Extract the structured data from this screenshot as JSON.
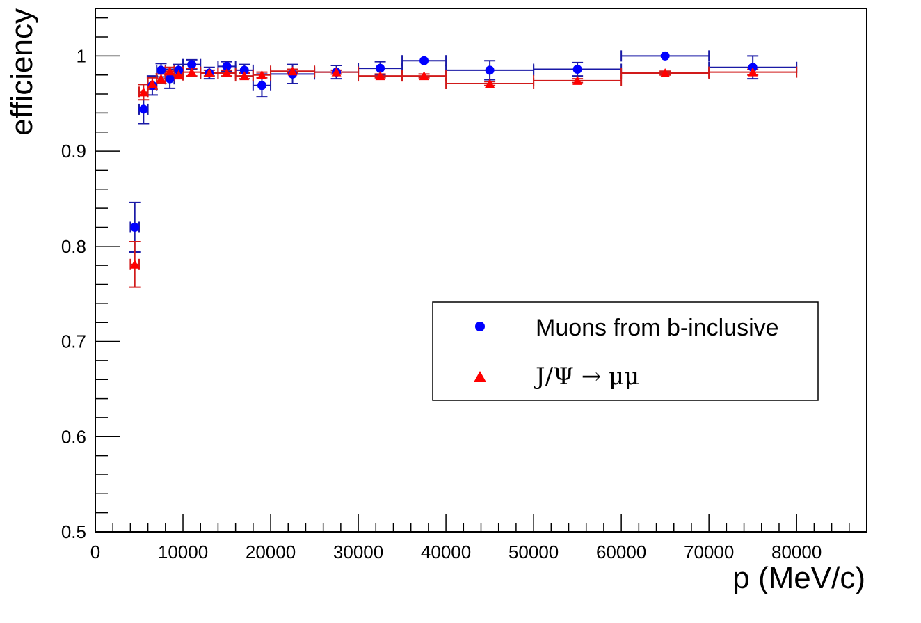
{
  "chart_data": {
    "type": "scatter",
    "title": "",
    "xlabel": "p (MeV/c)",
    "ylabel": "efficiency",
    "xlim": [
      0,
      88000
    ],
    "ylim": [
      0.5,
      1.05
    ],
    "x_ticks": [
      0,
      10000,
      20000,
      30000,
      40000,
      50000,
      60000,
      70000,
      80000
    ],
    "x_tick_labels": [
      "0",
      "10000",
      "20000",
      "30000",
      "40000",
      "50000",
      "60000",
      "70000",
      "80000"
    ],
    "y_ticks": [
      0.5,
      0.6,
      0.7,
      0.8,
      0.9,
      1.0
    ],
    "y_tick_labels": [
      "0.5",
      "0.6",
      "0.7",
      "0.8",
      "0.9",
      "1"
    ],
    "grid": false,
    "legend_position": "center-right",
    "series": [
      {
        "name": "Muons from b-inclusive",
        "marker": "circle",
        "color": "#0000ff",
        "errcolor": "#1a1aa6",
        "points": [
          {
            "x": 4500,
            "xlo": 4000,
            "xhi": 5000,
            "y": 0.82,
            "err": 0.026
          },
          {
            "x": 5500,
            "xlo": 5000,
            "xhi": 6000,
            "y": 0.944,
            "err": 0.015
          },
          {
            "x": 6500,
            "xlo": 6000,
            "xhi": 7000,
            "y": 0.969,
            "err": 0.01
          },
          {
            "x": 7500,
            "xlo": 7000,
            "xhi": 8000,
            "y": 0.985,
            "err": 0.007
          },
          {
            "x": 8500,
            "xlo": 8000,
            "xhi": 9000,
            "y": 0.976,
            "err": 0.01
          },
          {
            "x": 9500,
            "xlo": 9000,
            "xhi": 10000,
            "y": 0.985,
            "err": 0.006
          },
          {
            "x": 11000,
            "xlo": 10000,
            "xhi": 12000,
            "y": 0.991,
            "err": 0.005
          },
          {
            "x": 13000,
            "xlo": 12000,
            "xhi": 14000,
            "y": 0.982,
            "err": 0.006
          },
          {
            "x": 15000,
            "xlo": 14000,
            "xhi": 16000,
            "y": 0.989,
            "err": 0.005
          },
          {
            "x": 17000,
            "xlo": 16000,
            "xhi": 18000,
            "y": 0.985,
            "err": 0.006
          },
          {
            "x": 19000,
            "xlo": 18000,
            "xhi": 20000,
            "y": 0.969,
            "err": 0.012
          },
          {
            "x": 22500,
            "xlo": 20000,
            "xhi": 25000,
            "y": 0.981,
            "err": 0.01
          },
          {
            "x": 27500,
            "xlo": 25000,
            "xhi": 30000,
            "y": 0.983,
            "err": 0.007
          },
          {
            "x": 32500,
            "xlo": 30000,
            "xhi": 35000,
            "y": 0.987,
            "err": 0.007
          },
          {
            "x": 37500,
            "xlo": 35000,
            "xhi": 40000,
            "y": 0.995,
            "err": 0.0
          },
          {
            "x": 45000,
            "xlo": 40000,
            "xhi": 50000,
            "y": 0.985,
            "err": 0.01
          },
          {
            "x": 55000,
            "xlo": 50000,
            "xhi": 60000,
            "y": 0.986,
            "err": 0.007
          },
          {
            "x": 65000,
            "xlo": 60000,
            "xhi": 70000,
            "y": 1.0,
            "err": 0.0
          },
          {
            "x": 75000,
            "xlo": 70000,
            "xhi": 80000,
            "y": 0.988,
            "err": 0.012
          }
        ]
      },
      {
        "name": "J/Ψ → μμ",
        "marker": "triangle",
        "color": "#ff0000",
        "errcolor": "#d11a1a",
        "points": [
          {
            "x": 4500,
            "xlo": 4000,
            "xhi": 5000,
            "y": 0.781,
            "err": 0.024
          },
          {
            "x": 5500,
            "xlo": 5000,
            "xhi": 6000,
            "y": 0.962,
            "err": 0.008
          },
          {
            "x": 6500,
            "xlo": 6000,
            "xhi": 7000,
            "y": 0.971,
            "err": 0.006
          },
          {
            "x": 7500,
            "xlo": 7000,
            "xhi": 8000,
            "y": 0.976,
            "err": 0.005
          },
          {
            "x": 8500,
            "xlo": 8000,
            "xhi": 9000,
            "y": 0.984,
            "err": 0.004
          },
          {
            "x": 9500,
            "xlo": 9000,
            "xhi": 10000,
            "y": 0.98,
            "err": 0.004
          },
          {
            "x": 11000,
            "xlo": 10000,
            "xhi": 12000,
            "y": 0.983,
            "err": 0.004
          },
          {
            "x": 13000,
            "xlo": 12000,
            "xhi": 14000,
            "y": 0.982,
            "err": 0.003
          },
          {
            "x": 15000,
            "xlo": 14000,
            "xhi": 16000,
            "y": 0.982,
            "err": 0.003
          },
          {
            "x": 17000,
            "xlo": 16000,
            "xhi": 18000,
            "y": 0.979,
            "err": 0.003
          },
          {
            "x": 19000,
            "xlo": 18000,
            "xhi": 20000,
            "y": 0.98,
            "err": 0.003
          },
          {
            "x": 22500,
            "xlo": 20000,
            "xhi": 25000,
            "y": 0.984,
            "err": 0.002
          },
          {
            "x": 27500,
            "xlo": 25000,
            "xhi": 30000,
            "y": 0.983,
            "err": 0.002
          },
          {
            "x": 32500,
            "xlo": 30000,
            "xhi": 35000,
            "y": 0.979,
            "err": 0.002
          },
          {
            "x": 37500,
            "xlo": 35000,
            "xhi": 40000,
            "y": 0.979,
            "err": 0.002
          },
          {
            "x": 45000,
            "xlo": 40000,
            "xhi": 50000,
            "y": 0.971,
            "err": 0.002
          },
          {
            "x": 55000,
            "xlo": 50000,
            "xhi": 60000,
            "y": 0.974,
            "err": 0.002
          },
          {
            "x": 65000,
            "xlo": 60000,
            "xhi": 70000,
            "y": 0.982,
            "err": 0.002
          },
          {
            "x": 75000,
            "xlo": 70000,
            "xhi": 80000,
            "y": 0.983,
            "err": 0.003
          }
        ]
      }
    ]
  }
}
